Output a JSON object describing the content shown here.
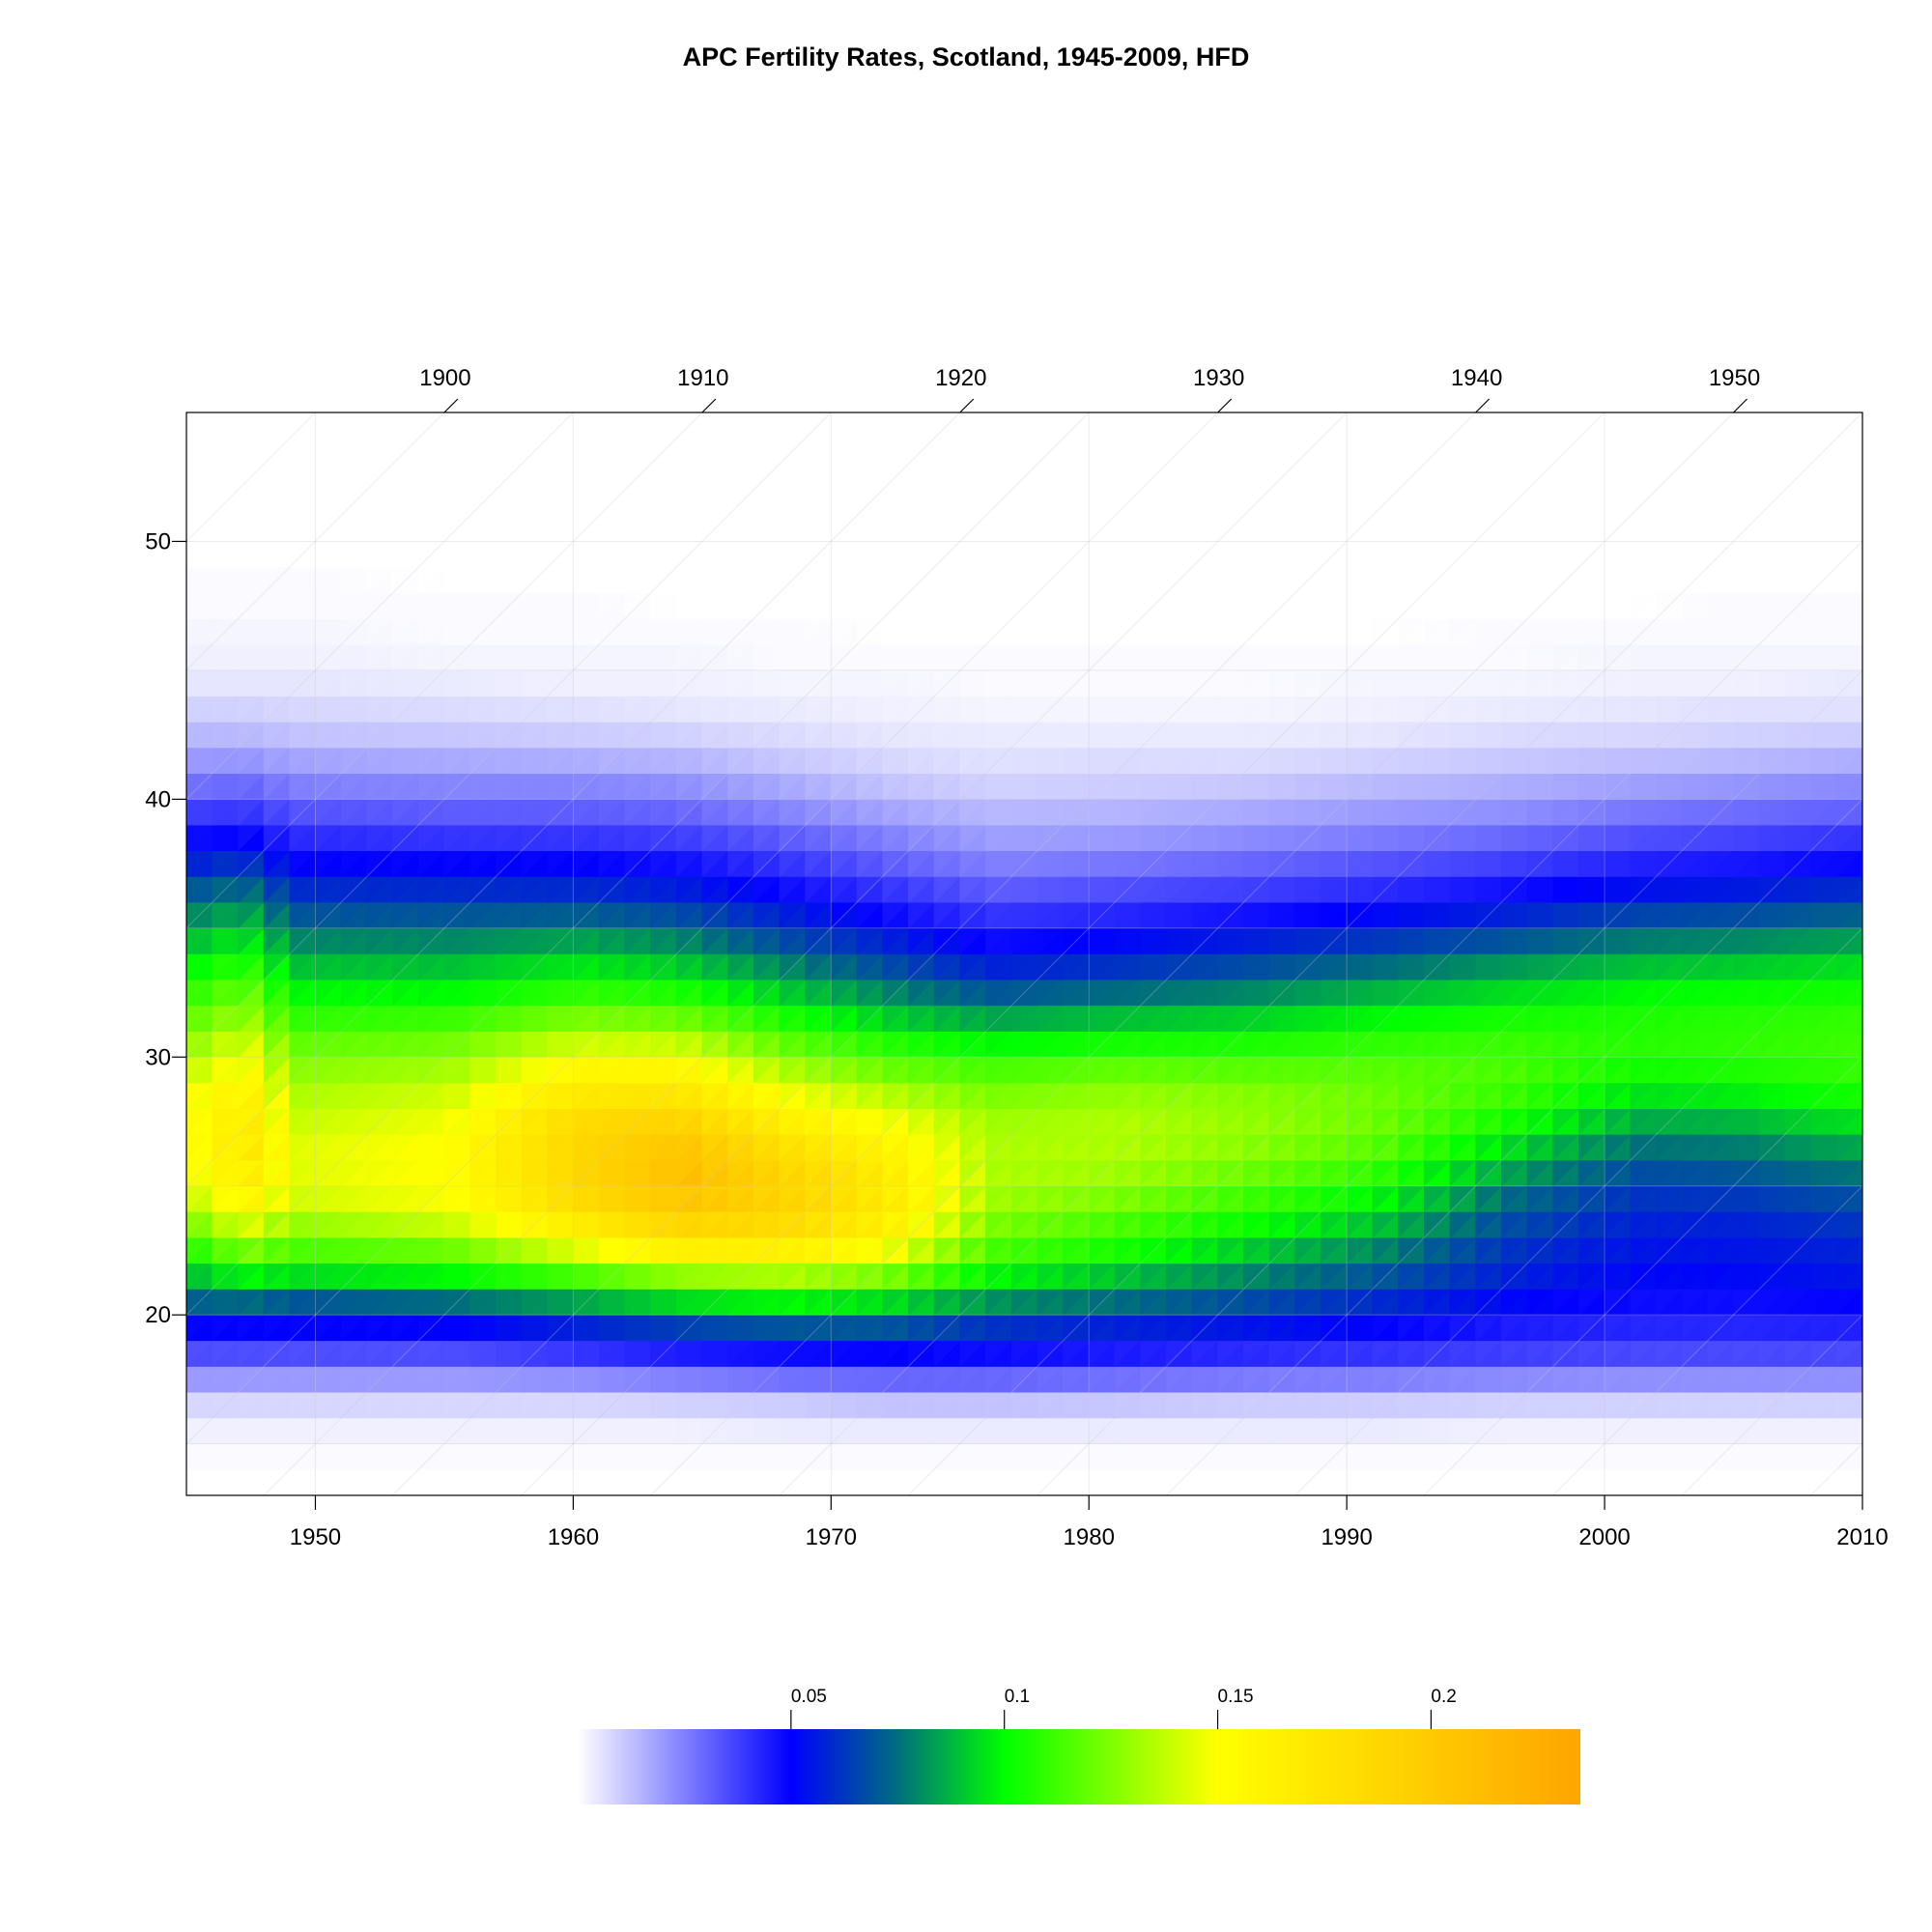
{
  "chart_data": {
    "type": "heatmap",
    "title": "APC Fertility Rates, Scotland, 1945-2009, HFD",
    "xlabel": "",
    "ylabel": "",
    "x_range": [
      1945,
      2010
    ],
    "y_range": [
      13,
      55
    ],
    "x_ticks": [
      1950,
      1960,
      1970,
      1980,
      1990,
      2000,
      2010
    ],
    "y_ticks": [
      20,
      30,
      40,
      50
    ],
    "cohort_ticks": [
      1900,
      1910,
      1920,
      1930,
      1940,
      1950
    ],
    "grid": true,
    "colorbar": {
      "placement": "bottom",
      "range": [
        0,
        0.235
      ],
      "ticks": [
        0.05,
        0.1,
        0.15,
        0.2
      ],
      "tick_labels": [
        "0.05",
        "0.1",
        "0.15",
        "0.2"
      ],
      "colors": [
        {
          "value": 0.0,
          "color": "#ffffff"
        },
        {
          "value": 0.05,
          "color": "#0000ff"
        },
        {
          "value": 0.075,
          "color": "#006e7c"
        },
        {
          "value": 0.1,
          "color": "#00ff00"
        },
        {
          "value": 0.15,
          "color": "#ffff00"
        },
        {
          "value": 0.235,
          "color": "#ffa500"
        }
      ]
    },
    "ages": [
      14,
      15,
      16,
      17,
      18,
      19,
      20,
      21,
      22,
      23,
      24,
      25,
      26,
      27,
      28,
      29,
      30,
      31,
      32,
      33,
      34,
      35,
      36,
      37,
      38,
      39,
      40,
      41,
      42,
      43,
      44,
      45,
      46,
      47,
      48,
      49,
      50
    ],
    "age_profiles": [
      {
        "year": 1945,
        "values": [
          0.001,
          0.003,
          0.008,
          0.02,
          0.035,
          0.05,
          0.072,
          0.09,
          0.108,
          0.125,
          0.14,
          0.148,
          0.15,
          0.15,
          0.148,
          0.14,
          0.13,
          0.12,
          0.11,
          0.1,
          0.09,
          0.08,
          0.07,
          0.058,
          0.048,
          0.038,
          0.028,
          0.02,
          0.014,
          0.009,
          0.005,
          0.003,
          0.002,
          0.001,
          0.001,
          0.0,
          0.0
        ]
      },
      {
        "year": 1947,
        "values": [
          0.001,
          0.003,
          0.008,
          0.02,
          0.035,
          0.05,
          0.075,
          0.1,
          0.125,
          0.145,
          0.16,
          0.168,
          0.172,
          0.17,
          0.165,
          0.155,
          0.145,
          0.132,
          0.122,
          0.11,
          0.098,
          0.087,
          0.076,
          0.063,
          0.05,
          0.04,
          0.03,
          0.021,
          0.014,
          0.009,
          0.005,
          0.003,
          0.002,
          0.001,
          0.001,
          0.0,
          0.0
        ]
      },
      {
        "year": 1949,
        "values": [
          0.001,
          0.003,
          0.008,
          0.02,
          0.035,
          0.05,
          0.07,
          0.095,
          0.115,
          0.13,
          0.142,
          0.145,
          0.145,
          0.14,
          0.135,
          0.128,
          0.12,
          0.11,
          0.1,
          0.09,
          0.08,
          0.07,
          0.06,
          0.05,
          0.042,
          0.034,
          0.025,
          0.018,
          0.012,
          0.008,
          0.005,
          0.003,
          0.002,
          0.001,
          0.001,
          0.0,
          0.0
        ]
      },
      {
        "year": 1955,
        "values": [
          0.001,
          0.003,
          0.008,
          0.02,
          0.035,
          0.05,
          0.075,
          0.1,
          0.122,
          0.14,
          0.15,
          0.152,
          0.152,
          0.148,
          0.142,
          0.133,
          0.123,
          0.112,
          0.1,
          0.09,
          0.08,
          0.07,
          0.06,
          0.05,
          0.04,
          0.032,
          0.024,
          0.017,
          0.011,
          0.007,
          0.004,
          0.002,
          0.001,
          0.001,
          0.0,
          0.0,
          0.0
        ]
      },
      {
        "year": 1960,
        "values": [
          0.001,
          0.003,
          0.008,
          0.022,
          0.04,
          0.058,
          0.085,
          0.115,
          0.145,
          0.168,
          0.185,
          0.19,
          0.19,
          0.185,
          0.172,
          0.158,
          0.142,
          0.125,
          0.11,
          0.097,
          0.085,
          0.072,
          0.06,
          0.05,
          0.04,
          0.032,
          0.024,
          0.016,
          0.01,
          0.006,
          0.003,
          0.002,
          0.001,
          0.001,
          0.0,
          0.0,
          0.0
        ]
      },
      {
        "year": 1964,
        "values": [
          0.001,
          0.003,
          0.009,
          0.025,
          0.045,
          0.065,
          0.095,
          0.13,
          0.165,
          0.19,
          0.205,
          0.21,
          0.205,
          0.192,
          0.175,
          0.158,
          0.14,
          0.122,
          0.106,
          0.092,
          0.08,
          0.068,
          0.057,
          0.047,
          0.038,
          0.03,
          0.022,
          0.015,
          0.009,
          0.005,
          0.003,
          0.002,
          0.001,
          0.0,
          0.0,
          0.0,
          0.0
        ]
      },
      {
        "year": 1968,
        "values": [
          0.001,
          0.004,
          0.01,
          0.028,
          0.048,
          0.07,
          0.1,
          0.135,
          0.165,
          0.185,
          0.192,
          0.19,
          0.18,
          0.165,
          0.15,
          0.135,
          0.12,
          0.106,
          0.092,
          0.08,
          0.068,
          0.058,
          0.048,
          0.04,
          0.032,
          0.024,
          0.017,
          0.011,
          0.007,
          0.004,
          0.002,
          0.001,
          0.001,
          0.0,
          0.0,
          0.0,
          0.0
        ]
      },
      {
        "year": 1972,
        "values": [
          0.001,
          0.004,
          0.012,
          0.03,
          0.05,
          0.07,
          0.095,
          0.125,
          0.15,
          0.165,
          0.17,
          0.168,
          0.16,
          0.15,
          0.137,
          0.122,
          0.108,
          0.093,
          0.08,
          0.068,
          0.058,
          0.048,
          0.04,
          0.032,
          0.025,
          0.018,
          0.012,
          0.008,
          0.005,
          0.003,
          0.002,
          0.001,
          0.0,
          0.0,
          0.0,
          0.0,
          0.0
        ]
      },
      {
        "year": 1976,
        "values": [
          0.001,
          0.004,
          0.012,
          0.03,
          0.048,
          0.062,
          0.082,
          0.1,
          0.115,
          0.125,
          0.132,
          0.135,
          0.135,
          0.132,
          0.125,
          0.115,
          0.1,
          0.085,
          0.07,
          0.058,
          0.048,
          0.04,
          0.032,
          0.025,
          0.019,
          0.014,
          0.009,
          0.006,
          0.004,
          0.002,
          0.001,
          0.001,
          0.0,
          0.0,
          0.0,
          0.0,
          0.0
        ]
      },
      {
        "year": 1981,
        "values": [
          0.001,
          0.004,
          0.011,
          0.028,
          0.045,
          0.058,
          0.075,
          0.09,
          0.105,
          0.115,
          0.125,
          0.132,
          0.135,
          0.135,
          0.13,
          0.12,
          0.105,
          0.09,
          0.075,
          0.062,
          0.052,
          0.043,
          0.035,
          0.027,
          0.02,
          0.015,
          0.01,
          0.007,
          0.004,
          0.002,
          0.001,
          0.001,
          0.0,
          0.0,
          0.0,
          0.0,
          0.0
        ]
      },
      {
        "year": 1986,
        "values": [
          0.001,
          0.004,
          0.01,
          0.026,
          0.042,
          0.055,
          0.068,
          0.08,
          0.092,
          0.103,
          0.113,
          0.122,
          0.128,
          0.13,
          0.127,
          0.118,
          0.106,
          0.093,
          0.08,
          0.068,
          0.057,
          0.047,
          0.038,
          0.03,
          0.023,
          0.017,
          0.011,
          0.007,
          0.004,
          0.002,
          0.001,
          0.001,
          0.0,
          0.0,
          0.0,
          0.0,
          0.0
        ]
      },
      {
        "year": 1991,
        "values": [
          0.001,
          0.004,
          0.01,
          0.025,
          0.04,
          0.05,
          0.06,
          0.07,
          0.08,
          0.09,
          0.1,
          0.11,
          0.118,
          0.122,
          0.122,
          0.118,
          0.11,
          0.1,
          0.088,
          0.075,
          0.063,
          0.052,
          0.042,
          0.034,
          0.026,
          0.02,
          0.014,
          0.009,
          0.005,
          0.003,
          0.002,
          0.001,
          0.0,
          0.0,
          0.0,
          0.0,
          0.0
        ]
      },
      {
        "year": 1996,
        "values": [
          0.001,
          0.003,
          0.009,
          0.023,
          0.038,
          0.045,
          0.052,
          0.058,
          0.062,
          0.068,
          0.075,
          0.085,
          0.095,
          0.105,
          0.112,
          0.115,
          0.112,
          0.105,
          0.095,
          0.083,
          0.07,
          0.058,
          0.047,
          0.038,
          0.03,
          0.022,
          0.016,
          0.011,
          0.007,
          0.004,
          0.002,
          0.001,
          0.001,
          0.0,
          0.0,
          0.0,
          0.0
        ]
      },
      {
        "year": 2001,
        "values": [
          0.001,
          0.003,
          0.009,
          0.022,
          0.036,
          0.043,
          0.048,
          0.052,
          0.055,
          0.058,
          0.062,
          0.068,
          0.076,
          0.086,
          0.096,
          0.104,
          0.108,
          0.106,
          0.1,
          0.09,
          0.078,
          0.066,
          0.054,
          0.044,
          0.035,
          0.027,
          0.019,
          0.013,
          0.008,
          0.005,
          0.003,
          0.002,
          0.001,
          0.0,
          0.0,
          0.0,
          0.0
        ]
      },
      {
        "year": 2005,
        "values": [
          0.001,
          0.003,
          0.009,
          0.022,
          0.036,
          0.043,
          0.048,
          0.052,
          0.055,
          0.058,
          0.063,
          0.07,
          0.078,
          0.088,
          0.098,
          0.106,
          0.11,
          0.108,
          0.102,
          0.092,
          0.08,
          0.068,
          0.056,
          0.046,
          0.037,
          0.029,
          0.021,
          0.014,
          0.009,
          0.006,
          0.003,
          0.002,
          0.001,
          0.001,
          0.0,
          0.0,
          0.0
        ]
      },
      {
        "year": 2009,
        "values": [
          0.001,
          0.003,
          0.009,
          0.022,
          0.036,
          0.044,
          0.05,
          0.055,
          0.058,
          0.062,
          0.068,
          0.076,
          0.085,
          0.095,
          0.104,
          0.11,
          0.112,
          0.11,
          0.104,
          0.095,
          0.084,
          0.072,
          0.06,
          0.049,
          0.04,
          0.031,
          0.023,
          0.016,
          0.01,
          0.006,
          0.004,
          0.002,
          0.001,
          0.001,
          0.0,
          0.0,
          0.0
        ]
      }
    ]
  }
}
